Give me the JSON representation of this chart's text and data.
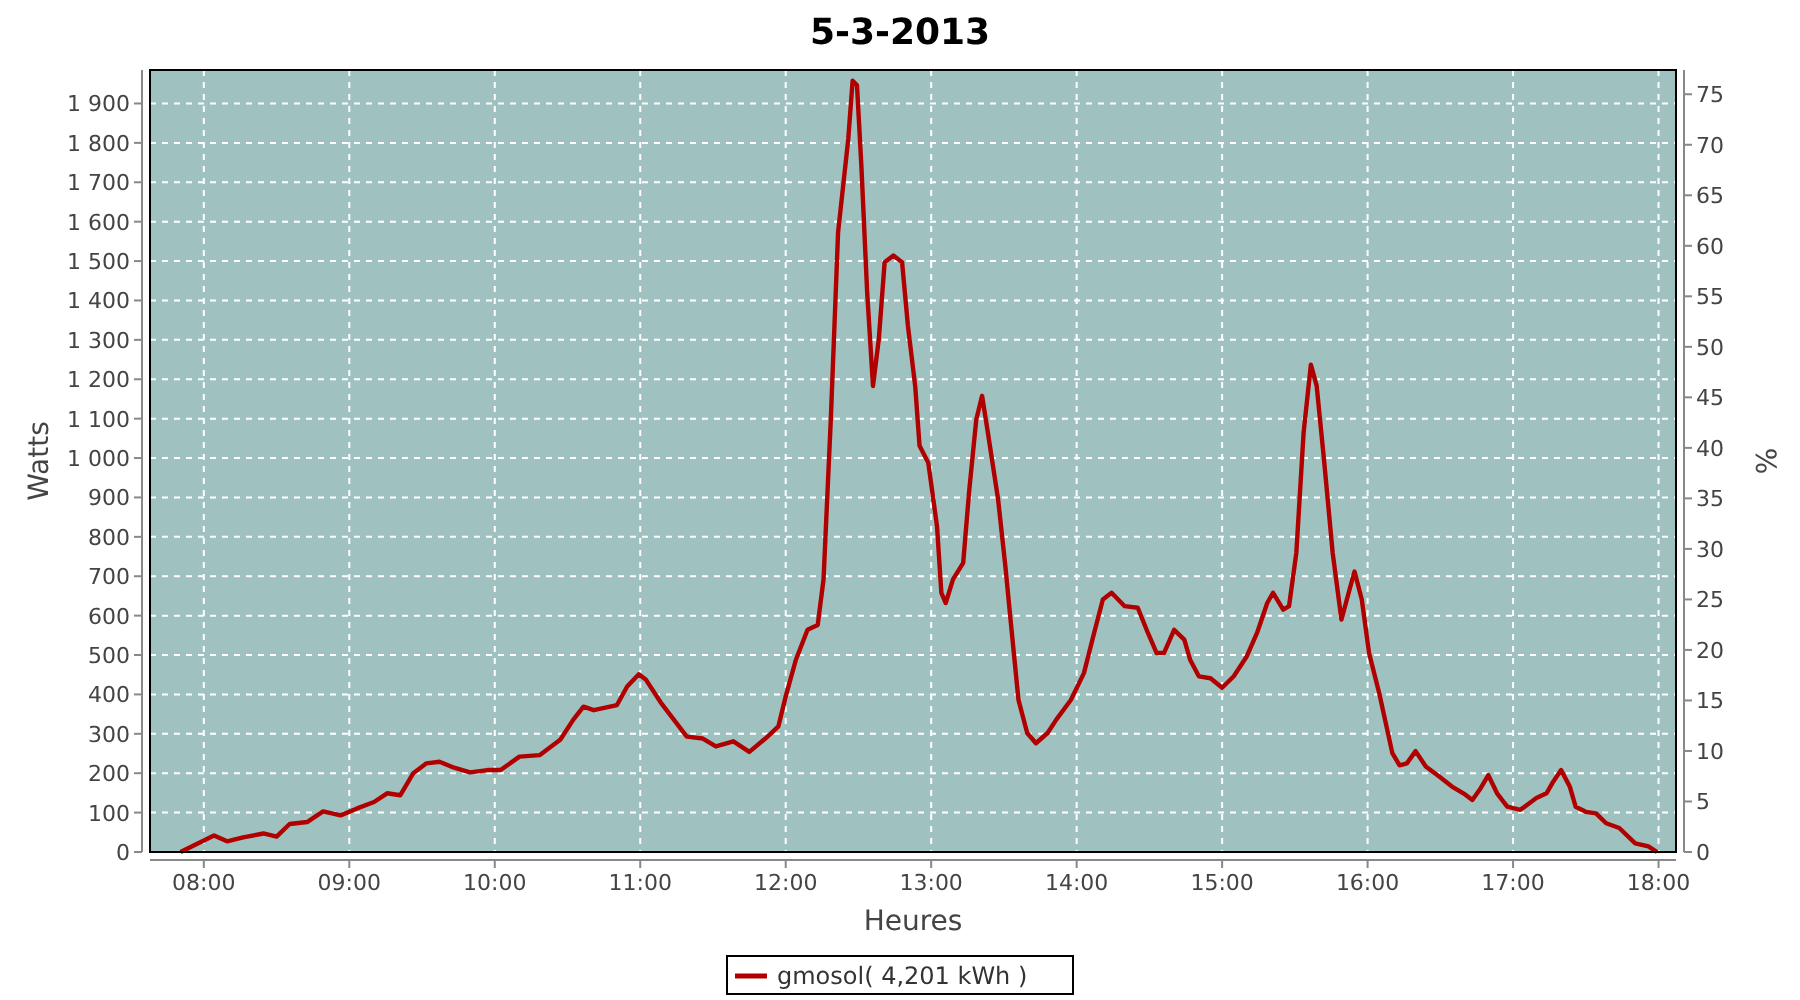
{
  "chart_data": {
    "type": "line",
    "title": "5-3-2013",
    "xlabel": "Heures",
    "ylabel": "Watts",
    "y2label": "%",
    "xlim": [
      7.63,
      18.12
    ],
    "xticks": [
      {
        "value": 8,
        "label": "08:00"
      },
      {
        "value": 9,
        "label": "09:00"
      },
      {
        "value": 10,
        "label": "10:00"
      },
      {
        "value": 11,
        "label": "11:00"
      },
      {
        "value": 12,
        "label": "12:00"
      },
      {
        "value": 13,
        "label": "13:00"
      },
      {
        "value": 14,
        "label": "14:00"
      },
      {
        "value": 15,
        "label": "15:00"
      },
      {
        "value": 16,
        "label": "16:00"
      },
      {
        "value": 17,
        "label": "17:00"
      },
      {
        "value": 18,
        "label": "18:00"
      }
    ],
    "ylim": [
      0,
      1985
    ],
    "yticks": [
      0,
      100,
      200,
      300,
      400,
      500,
      600,
      700,
      800,
      900,
      {
        "value": 1000,
        "label": "1 000"
      },
      {
        "value": 1100,
        "label": "1 100"
      },
      {
        "value": 1200,
        "label": "1 200"
      },
      {
        "value": 1300,
        "label": "1 300"
      },
      {
        "value": 1400,
        "label": "1 400"
      },
      {
        "value": 1500,
        "label": "1 500"
      },
      {
        "value": 1600,
        "label": "1 600"
      },
      {
        "value": 1700,
        "label": "1 700"
      },
      {
        "value": 1800,
        "label": "1 800"
      },
      {
        "value": 1900,
        "label": "1 900"
      }
    ],
    "y2lim": [
      0,
      77.4
    ],
    "y2ticks": [
      0,
      5,
      10,
      15,
      20,
      25,
      30,
      35,
      40,
      45,
      50,
      55,
      60,
      65,
      70,
      75
    ],
    "grid": true,
    "legend": "bottom",
    "line_style": "solid",
    "series": [
      {
        "name": "gmosol( 4,201 kWh )",
        "color": "#b00000",
        "x": [
          7.84,
          8.07,
          8.16,
          8.27,
          8.41,
          8.5,
          8.59,
          8.71,
          8.82,
          8.94,
          9.05,
          9.17,
          9.26,
          9.35,
          9.44,
          9.53,
          9.62,
          9.72,
          9.83,
          9.95,
          10.04,
          10.17,
          10.31,
          10.45,
          10.54,
          10.61,
          10.68,
          10.84,
          10.91,
          10.99,
          11.04,
          11.14,
          11.32,
          11.43,
          11.52,
          11.64,
          11.75,
          11.86,
          11.95,
          12.0,
          12.07,
          12.15,
          12.22,
          12.26,
          12.31,
          12.36,
          12.43,
          12.46,
          12.49,
          12.52,
          12.56,
          12.6,
          12.64,
          12.68,
          12.74,
          12.8,
          12.84,
          12.89,
          12.92,
          12.98,
          13.04,
          13.07,
          13.1,
          13.15,
          13.22,
          13.26,
          13.31,
          13.35,
          13.39,
          13.46,
          13.51,
          13.55,
          13.6,
          13.66,
          13.72,
          13.8,
          13.86,
          13.96,
          14.05,
          14.12,
          14.18,
          14.24,
          14.33,
          14.42,
          14.49,
          14.55,
          14.6,
          14.67,
          14.74,
          14.78,
          14.84,
          14.92,
          15.0,
          15.08,
          15.17,
          15.24,
          15.31,
          15.35,
          15.42,
          15.46,
          15.51,
          15.56,
          15.61,
          15.65,
          15.7,
          15.76,
          15.82,
          15.87,
          15.91,
          15.96,
          16.01,
          16.08,
          16.17,
          16.22,
          16.27,
          16.33,
          16.4,
          16.49,
          16.58,
          16.67,
          16.72,
          16.77,
          16.83,
          16.89,
          16.96,
          17.05,
          17.16,
          17.23,
          17.27,
          17.33,
          17.39,
          17.43,
          17.5,
          17.57,
          17.64,
          17.73,
          17.84,
          17.93,
          17.99
        ],
        "values": [
          0,
          42,
          27,
          37,
          47,
          39,
          71,
          76,
          103,
          93,
          110,
          127,
          149,
          144,
          200,
          225,
          229,
          214,
          202,
          208,
          208,
          242,
          246,
          285,
          336,
          369,
          360,
          373,
          420,
          451,
          437,
          380,
          293,
          288,
          268,
          281,
          254,
          288,
          319,
          395,
          488,
          564,
          576,
          692,
          1098,
          1573,
          1810,
          1958,
          1946,
          1742,
          1420,
          1183,
          1302,
          1497,
          1514,
          1497,
          1336,
          1183,
          1031,
          988,
          827,
          658,
          632,
          692,
          734,
          912,
          1098,
          1158,
          1064,
          895,
          725,
          573,
          386,
          302,
          276,
          302,
          336,
          386,
          454,
          556,
          641,
          658,
          624,
          620,
          556,
          505,
          505,
          564,
          539,
          488,
          446,
          441,
          417,
          446,
          497,
          556,
          632,
          658,
          615,
          624,
          759,
          1064,
          1237,
          1183,
          997,
          759,
          590,
          658,
          712,
          641,
          505,
          403,
          251,
          220,
          225,
          256,
          217,
          192,
          166,
          146,
          132,
          158,
          195,
          149,
          115,
          107,
          137,
          149,
          175,
          208,
          166,
          115,
          102,
          98,
          73,
          61,
          22,
          14,
          0
        ]
      }
    ]
  }
}
